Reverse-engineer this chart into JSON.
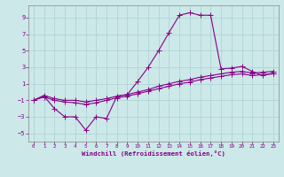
{
  "xlabel": "Windchill (Refroidissement éolien,°C)",
  "ylabel": "",
  "background_color": "#cce8e8",
  "grid_color": "#aad0d0",
  "line_color": "#880088",
  "xlim": [
    -0.5,
    23.5
  ],
  "ylim": [
    -6,
    10.5
  ],
  "xticks": [
    0,
    1,
    2,
    3,
    4,
    5,
    6,
    7,
    8,
    9,
    10,
    11,
    12,
    13,
    14,
    15,
    16,
    17,
    18,
    19,
    20,
    21,
    22,
    23
  ],
  "yticks": [
    -5,
    -3,
    -1,
    1,
    3,
    5,
    7,
    9
  ],
  "line1_x": [
    0,
    1,
    2,
    3,
    4,
    5,
    6,
    7,
    8,
    9,
    10,
    11,
    12,
    13,
    14,
    15,
    16,
    17,
    18,
    19,
    20,
    21,
    22,
    23
  ],
  "line1_y": [
    -1.0,
    -0.5,
    -2.0,
    -3.0,
    -3.0,
    -4.6,
    -3.0,
    -3.2,
    -0.5,
    -0.3,
    1.3,
    3.0,
    5.0,
    7.2,
    9.3,
    9.6,
    9.3,
    9.3,
    2.8,
    2.9,
    3.1,
    2.5,
    2.0,
    2.3
  ],
  "line2_x": [
    0,
    1,
    2,
    3,
    4,
    5,
    6,
    7,
    8,
    9,
    10,
    11,
    12,
    13,
    14,
    15,
    16,
    17,
    18,
    19,
    20,
    21,
    22,
    23
  ],
  "line2_y": [
    -1.0,
    -0.6,
    -1.0,
    -1.2,
    -1.3,
    -1.5,
    -1.3,
    -1.0,
    -0.7,
    -0.5,
    -0.2,
    0.1,
    0.4,
    0.7,
    1.0,
    1.2,
    1.5,
    1.7,
    1.9,
    2.1,
    2.2,
    2.0,
    2.1,
    2.2
  ],
  "line3_x": [
    0,
    1,
    2,
    3,
    4,
    5,
    6,
    7,
    8,
    9,
    10,
    11,
    12,
    13,
    14,
    15,
    16,
    17,
    18,
    19,
    20,
    21,
    22,
    23
  ],
  "line3_y": [
    -1.0,
    -0.4,
    -0.8,
    -1.0,
    -1.0,
    -1.2,
    -1.0,
    -0.8,
    -0.5,
    -0.3,
    0.0,
    0.3,
    0.7,
    1.0,
    1.3,
    1.5,
    1.8,
    2.0,
    2.2,
    2.4,
    2.5,
    2.3,
    2.4,
    2.5
  ]
}
